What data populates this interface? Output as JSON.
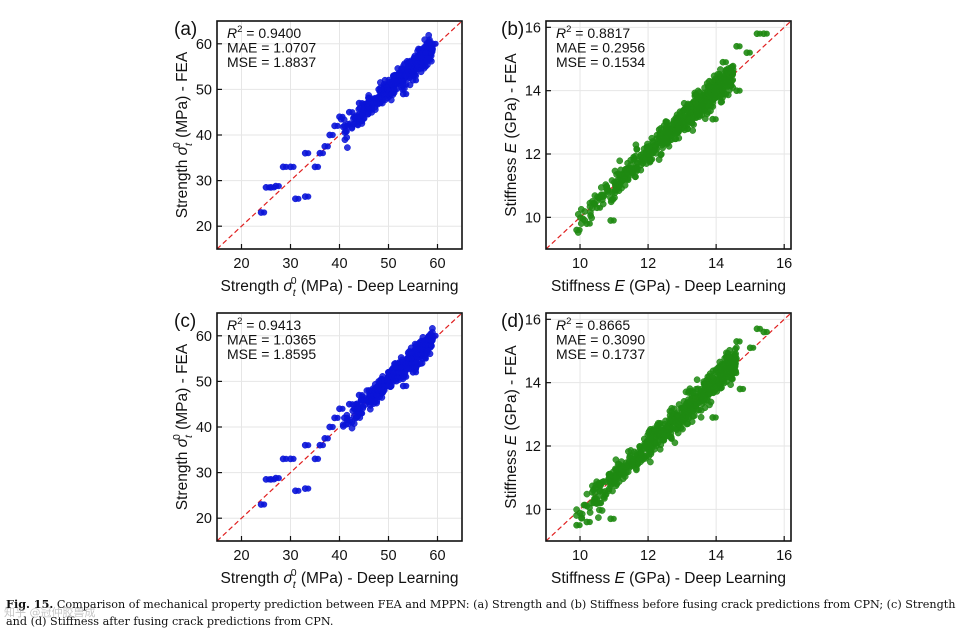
{
  "chart_data": [
    {
      "type": "scatter",
      "panel_label": "(a)",
      "xlabel_parts": [
        "Strength ",
        "σ",
        "t",
        "0",
        " (MPa) - Deep Learning"
      ],
      "ylabel_parts": [
        "Strength ",
        "σ",
        "t",
        "0",
        " (MPa) - FEA"
      ],
      "xlim": [
        15,
        65
      ],
      "ylim": [
        15,
        65
      ],
      "xticks": [
        20,
        30,
        40,
        50,
        60
      ],
      "yticks": [
        20,
        30,
        40,
        50,
        60
      ],
      "series_color": "#0a14d8",
      "reference_line": {
        "style": "dashed",
        "color": "#e02020",
        "label": "y = x"
      },
      "stats": [
        "R² = 0.9400",
        "MAE = 1.0707",
        "MSE = 1.8837"
      ],
      "points": [
        [
          24,
          23
        ],
        [
          25,
          28.5
        ],
        [
          26,
          28.5
        ],
        [
          27,
          28.8
        ],
        [
          28.5,
          33
        ],
        [
          30,
          33
        ],
        [
          31,
          26
        ],
        [
          33,
          26.5
        ],
        [
          33,
          36
        ],
        [
          35,
          33
        ],
        [
          36,
          36
        ],
        [
          37,
          37.5
        ],
        [
          38,
          40
        ],
        [
          39,
          42
        ],
        [
          40,
          44
        ],
        [
          41,
          42
        ],
        [
          42,
          45
        ],
        [
          43,
          44
        ],
        [
          44,
          47
        ],
        [
          45,
          46
        ],
        [
          46,
          48
        ],
        [
          47,
          47
        ],
        [
          48,
          50
        ],
        [
          49,
          49
        ],
        [
          50,
          51
        ],
        [
          51,
          50
        ],
        [
          52,
          52
        ],
        [
          53,
          51
        ],
        [
          54,
          54
        ],
        [
          55,
          53
        ],
        [
          56,
          56
        ],
        [
          57,
          55
        ],
        [
          58,
          58
        ],
        [
          59,
          60
        ],
        [
          44,
          43
        ],
        [
          46,
          46
        ],
        [
          48,
          48
        ],
        [
          50,
          49
        ],
        [
          52,
          53
        ],
        [
          54,
          55
        ],
        [
          56,
          57
        ],
        [
          58,
          59
        ],
        [
          53,
          49
        ],
        [
          51,
          53
        ],
        [
          55,
          52
        ],
        [
          57,
          58
        ]
      ],
      "cluster": {
        "xmin": 40,
        "xmax": 59,
        "spread": 2.2,
        "count": 380
      }
    },
    {
      "type": "scatter",
      "panel_label": "(b)",
      "xlabel_parts": [
        "Stiffness ",
        "E",
        " (GPa) - Deep Learning"
      ],
      "ylabel_parts": [
        "Stiffness ",
        "E",
        " (GPa) - FEA"
      ],
      "xlim": [
        9,
        16.2
      ],
      "ylim": [
        9,
        16.2
      ],
      "xticks": [
        10,
        12,
        14,
        16
      ],
      "yticks": [
        10,
        12,
        14,
        16
      ],
      "series_color": "#1f8a12",
      "reference_line": {
        "style": "dashed",
        "color": "#e02020",
        "label": "y = x"
      },
      "stats": [
        "R² = 0.8817",
        "MAE = 0.2956",
        "MSE = 0.1534"
      ],
      "points": [
        [
          15.2,
          15.8
        ],
        [
          15.4,
          15.8
        ],
        [
          14.6,
          15.4
        ],
        [
          14.9,
          15.2
        ],
        [
          14.2,
          14.9
        ],
        [
          14.4,
          14.5
        ],
        [
          13.8,
          14.3
        ],
        [
          14.6,
          14.0
        ],
        [
          13.3,
          13.6
        ],
        [
          13.9,
          13.1
        ],
        [
          10.9,
          9.9
        ],
        [
          10.2,
          9.8
        ],
        [
          9.9,
          9.6
        ],
        [
          10.5,
          10.3
        ]
      ],
      "cluster": {
        "xmin": 9.8,
        "xmax": 14.5,
        "spread": 0.38,
        "count": 650
      }
    },
    {
      "type": "scatter",
      "panel_label": "(c)",
      "xlabel_parts": [
        "Strength ",
        "σ",
        "t",
        "0",
        " (MPa) - Deep Learning"
      ],
      "ylabel_parts": [
        "Strength ",
        "σ",
        "t",
        "0",
        " (MPa) - FEA"
      ],
      "xlim": [
        15,
        65
      ],
      "ylim": [
        15,
        65
      ],
      "xticks": [
        20,
        30,
        40,
        50,
        60
      ],
      "yticks": [
        20,
        30,
        40,
        50,
        60
      ],
      "series_color": "#0a14d8",
      "reference_line": {
        "style": "dashed",
        "color": "#e02020",
        "label": "y = x"
      },
      "stats": [
        "R² = 0.9413",
        "MAE = 1.0365",
        "MSE = 1.8595"
      ],
      "points": [
        [
          24,
          23
        ],
        [
          25,
          28.5
        ],
        [
          26,
          28.5
        ],
        [
          27,
          28.8
        ],
        [
          28.5,
          33
        ],
        [
          30,
          33
        ],
        [
          31,
          26
        ],
        [
          33,
          26.5
        ],
        [
          33,
          36
        ],
        [
          35,
          33
        ],
        [
          36,
          36
        ],
        [
          37,
          37.5
        ],
        [
          38,
          40
        ],
        [
          39,
          42
        ],
        [
          40,
          44
        ],
        [
          41,
          42
        ],
        [
          42,
          45
        ],
        [
          43,
          44
        ],
        [
          44,
          47
        ],
        [
          45,
          46
        ],
        [
          46,
          48
        ],
        [
          47,
          47
        ],
        [
          48,
          50
        ],
        [
          49,
          49
        ],
        [
          50,
          51
        ],
        [
          51,
          50
        ],
        [
          52,
          52
        ],
        [
          53,
          51
        ],
        [
          54,
          54
        ],
        [
          55,
          53
        ],
        [
          56,
          56
        ],
        [
          57,
          55
        ],
        [
          58,
          58
        ],
        [
          59,
          60
        ],
        [
          44,
          43
        ],
        [
          46,
          46
        ],
        [
          48,
          48
        ],
        [
          50,
          49
        ],
        [
          52,
          53
        ],
        [
          54,
          55
        ],
        [
          56,
          57
        ],
        [
          58,
          59
        ],
        [
          53,
          49
        ],
        [
          51,
          53
        ],
        [
          55,
          52
        ],
        [
          57,
          58
        ]
      ],
      "cluster": {
        "xmin": 40,
        "xmax": 59,
        "spread": 2.1,
        "count": 380
      }
    },
    {
      "type": "scatter",
      "panel_label": "(d)",
      "xlabel_parts": [
        "Stiffness ",
        "E",
        " (GPa) - Deep Learning"
      ],
      "ylabel_parts": [
        "Stiffness ",
        "E",
        " (GPa) - FEA"
      ],
      "xlim": [
        9,
        16.2
      ],
      "ylim": [
        9,
        16.2
      ],
      "xticks": [
        10,
        12,
        14,
        16
      ],
      "yticks": [
        10,
        12,
        14,
        16
      ],
      "series_color": "#1f8a12",
      "reference_line": {
        "style": "dashed",
        "color": "#e02020",
        "label": "y = x"
      },
      "stats": [
        "R² = 0.8665",
        "MAE = 0.3090",
        "MSE = 0.1737"
      ],
      "points": [
        [
          15.2,
          15.7
        ],
        [
          15.4,
          15.6
        ],
        [
          14.6,
          15.3
        ],
        [
          15.0,
          15.1
        ],
        [
          14.3,
          14.8
        ],
        [
          14.5,
          14.3
        ],
        [
          13.8,
          14.2
        ],
        [
          14.7,
          13.8
        ],
        [
          13.3,
          13.5
        ],
        [
          13.9,
          12.9
        ],
        [
          10.9,
          9.7
        ],
        [
          10.2,
          9.6
        ],
        [
          9.9,
          9.5
        ],
        [
          10.5,
          10.2
        ]
      ],
      "cluster": {
        "xmin": 9.8,
        "xmax": 14.6,
        "spread": 0.42,
        "count": 650
      }
    }
  ],
  "caption": {
    "label": "Fig. 15.",
    "text": "Comparison of mechanical property prediction between FEA and MPPN: (a) Strength and (b) Stiffness before fusing crack predictions from CPN; (c) Strength and (d) Stiffness after fusing crack predictions from CPN."
  },
  "watermark": "知乎 @冠仲胶兽成"
}
